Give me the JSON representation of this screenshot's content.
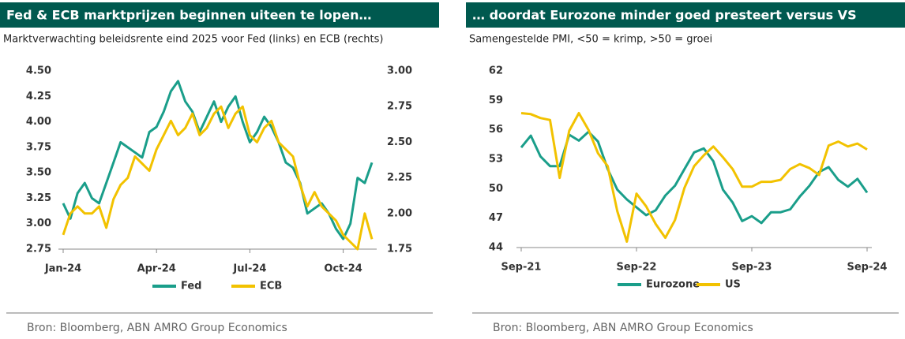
{
  "chart_data": [
    {
      "type": "line",
      "title": "Fed & ECB marktprijzen beginnen uiteen te lopen…",
      "subtitle": "Marktverwachting beleidsrente eind 2025 voor Fed (links) en ECB (rechts)",
      "source": "Bron: Bloomberg, ABN AMRO Group Economics",
      "categories": [
        "Jan-24",
        null,
        null,
        null,
        null,
        null,
        null,
        null,
        null,
        null,
        null,
        null,
        null,
        "Apr-24",
        null,
        null,
        null,
        null,
        null,
        null,
        null,
        null,
        null,
        null,
        null,
        null,
        "Jul-24",
        null,
        null,
        null,
        null,
        null,
        null,
        null,
        null,
        null,
        null,
        null,
        null,
        "Oct-24",
        null,
        null,
        null,
        null
      ],
      "series": [
        {
          "name": "Fed",
          "color": "#1a9e8a",
          "values": [
            3.2,
            3.05,
            3.3,
            3.4,
            3.25,
            3.2,
            3.4,
            3.6,
            3.8,
            3.75,
            3.7,
            3.65,
            3.9,
            3.95,
            4.1,
            4.3,
            4.4,
            4.2,
            4.1,
            3.9,
            4.05,
            4.2,
            4.0,
            4.15,
            4.25,
            4.0,
            3.8,
            3.9,
            4.05,
            3.95,
            3.8,
            3.6,
            3.55,
            3.4,
            3.1,
            3.15,
            3.2,
            3.1,
            2.95,
            2.85,
            3.0,
            3.45,
            3.4,
            3.6
          ]
        },
        {
          "name": "ECB",
          "color": "#f2c200",
          "axis": "y2",
          "values": [
            1.85,
            2.0,
            2.05,
            2.0,
            2.0,
            2.05,
            1.9,
            2.1,
            2.2,
            2.25,
            2.4,
            2.35,
            2.3,
            2.45,
            2.55,
            2.65,
            2.55,
            2.6,
            2.7,
            2.55,
            2.6,
            2.7,
            2.75,
            2.6,
            2.7,
            2.75,
            2.55,
            2.5,
            2.6,
            2.65,
            2.5,
            2.45,
            2.4,
            2.2,
            2.05,
            2.15,
            2.05,
            2.0,
            1.95,
            1.85,
            1.8,
            1.75,
            2.0,
            1.82
          ]
        }
      ],
      "ylim": [
        2.75,
        4.5
      ],
      "yticks": [
        2.75,
        {
          "value": 3,
          "label": "3.00"
        },
        3.25,
        {
          "value": 3.5,
          "label": "3.50"
        },
        3.75,
        {
          "value": 4,
          "label": "4.00"
        },
        4.25,
        {
          "value": 4.5,
          "label": "4.50"
        }
      ],
      "y2lim": [
        1.75,
        3
      ],
      "y2ticks": [
        1.75,
        {
          "value": 2,
          "label": "2.00"
        },
        2.25,
        {
          "value": 2.5,
          "label": "2.50"
        },
        2.75,
        {
          "value": 3,
          "label": "3.00"
        }
      ],
      "grid": false,
      "legend": "bottom"
    },
    {
      "type": "line",
      "title": "… doordat Eurozone minder goed presteert versus VS",
      "subtitle": "Samengestelde PMI, <50 = krimp, >50 = groei",
      "source": "Bron: Bloomberg, ABN AMRO Group Economics",
      "categories": [
        "Sep-21",
        null,
        null,
        null,
        null,
        null,
        null,
        null,
        null,
        null,
        null,
        null,
        "Sep-22",
        null,
        null,
        null,
        null,
        null,
        null,
        null,
        null,
        null,
        null,
        null,
        "Sep-23",
        null,
        null,
        null,
        null,
        null,
        null,
        null,
        null,
        null,
        null,
        null,
        "Sep-24"
      ],
      "series": [
        {
          "name": "Eurozone",
          "color": "#1a9e8a",
          "values": [
            54.2,
            55.4,
            53.3,
            52.3,
            52.3,
            55.5,
            54.9,
            55.8,
            54.8,
            52.0,
            49.9,
            48.9,
            48.1,
            47.3,
            47.8,
            49.3,
            50.3,
            52.0,
            53.7,
            54.1,
            52.8,
            49.9,
            48.6,
            46.7,
            47.2,
            46.5,
            47.6,
            47.6,
            47.9,
            49.2,
            50.3,
            51.7,
            52.2,
            50.9,
            50.2,
            51.0,
            49.6
          ]
        },
        {
          "name": "US",
          "color": "#f2c200",
          "values": [
            57.7,
            57.6,
            57.2,
            57.0,
            51.1,
            55.9,
            57.7,
            56.0,
            53.6,
            52.3,
            47.7,
            44.6,
            49.5,
            48.2,
            46.4,
            45.0,
            46.8,
            50.1,
            52.3,
            53.4,
            54.3,
            53.2,
            52.0,
            50.2,
            50.2,
            50.7,
            50.7,
            50.9,
            52.0,
            52.5,
            52.1,
            51.4,
            54.4,
            54.8,
            54.3,
            54.6,
            54.0
          ]
        }
      ],
      "ylim": [
        44,
        62
      ],
      "yticks": [
        44,
        47,
        50,
        53,
        56,
        59,
        62
      ],
      "grid": false,
      "legend": "bottom"
    }
  ]
}
